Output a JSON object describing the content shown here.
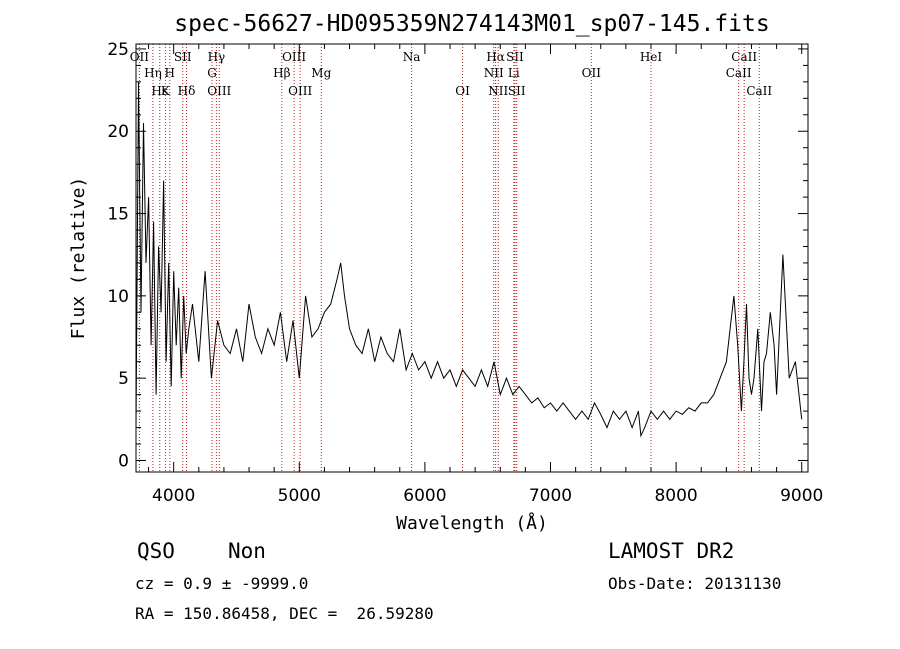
{
  "chart_data": {
    "type": "line",
    "title": "spec-56627-HD095359N274143M01_sp07-145.fits",
    "xlabel": "Wavelength (Å)",
    "ylabel": "Flux (relative)",
    "xlim": [
      3700,
      9050
    ],
    "ylim": [
      -0.7,
      25.3
    ],
    "xticks": [
      4000,
      5000,
      6000,
      7000,
      8000,
      9000
    ],
    "yticks": [
      0,
      5,
      10,
      15,
      20,
      25
    ],
    "grid": false,
    "series": [
      {
        "x": [
          3700,
          3720,
          3740,
          3760,
          3780,
          3800,
          3820,
          3840,
          3860,
          3880,
          3900,
          3920,
          3940,
          3960,
          3980,
          4000,
          4020,
          4040,
          4060,
          4080,
          4100,
          4120,
          4150,
          4200,
          4250,
          4300,
          4350,
          4400,
          4450,
          4500,
          4550,
          4600,
          4650,
          4700,
          4750,
          4800,
          4850,
          4900,
          4950,
          5000,
          5050,
          5100,
          5150,
          5200,
          5250,
          5300,
          5330,
          5360,
          5400,
          5450,
          5500,
          5550,
          5600,
          5650,
          5700,
          5750,
          5800,
          5850,
          5900,
          5950,
          6000,
          6050,
          6100,
          6150,
          6200,
          6250,
          6300,
          6350,
          6400,
          6450,
          6500,
          6550,
          6600,
          6650,
          6700,
          6750,
          6800,
          6850,
          6900,
          6950,
          7000,
          7050,
          7100,
          7150,
          7200,
          7250,
          7300,
          7350,
          7400,
          7450,
          7500,
          7550,
          7600,
          7650,
          7700,
          7720,
          7750,
          7800,
          7850,
          7900,
          7950,
          8000,
          8050,
          8100,
          8150,
          8200,
          8250,
          8300,
          8350,
          8400,
          8430,
          8460,
          8490,
          8520,
          8540,
          8560,
          8580,
          8600,
          8620,
          8650,
          8680,
          8700,
          8720,
          8750,
          8780,
          8800,
          8850,
          8900,
          8950,
          9000
        ],
        "y": [
          2.0,
          23.0,
          9.0,
          20.5,
          12.0,
          16.0,
          7.0,
          14.5,
          4.0,
          13.0,
          9.0,
          17.0,
          6.0,
          12.0,
          4.5,
          11.5,
          7.0,
          10.5,
          5.0,
          10.0,
          6.5,
          8.0,
          9.5,
          6.0,
          11.5,
          5.0,
          8.5,
          7.0,
          6.5,
          8.0,
          6.0,
          9.5,
          7.5,
          6.5,
          8.0,
          7.0,
          9.0,
          6.0,
          8.5,
          5.0,
          10.0,
          7.5,
          8.0,
          9.0,
          9.5,
          11.0,
          12.0,
          10.0,
          8.0,
          7.0,
          6.5,
          8.0,
          6.0,
          7.5,
          6.5,
          6.0,
          8.0,
          5.5,
          6.5,
          5.5,
          6.0,
          5.0,
          6.0,
          5.0,
          5.5,
          4.5,
          5.5,
          5.0,
          4.5,
          5.5,
          4.5,
          6.0,
          4.0,
          5.0,
          4.0,
          4.5,
          4.0,
          3.5,
          3.8,
          3.2,
          3.5,
          3.0,
          3.5,
          3.0,
          2.5,
          3.0,
          2.5,
          3.5,
          2.8,
          2.0,
          3.0,
          2.5,
          3.0,
          2.0,
          3.0,
          1.5,
          2.0,
          3.0,
          2.5,
          3.0,
          2.5,
          3.0,
          2.8,
          3.2,
          3.0,
          3.5,
          3.5,
          4.0,
          5.0,
          6.0,
          8.0,
          10.0,
          7.0,
          3.0,
          6.0,
          9.5,
          5.0,
          4.0,
          5.0,
          8.0,
          3.0,
          6.0,
          6.5,
          9.0,
          7.0,
          4.0,
          12.5,
          5.0,
          6.0,
          2.5
        ]
      }
    ],
    "lines": [
      {
        "label": "OII",
        "x": 3727,
        "row": 0
      },
      {
        "label": "Hη",
        "x": 3835,
        "row": 1
      },
      {
        "label": "Hε",
        "x": 3889,
        "row": 2
      },
      {
        "label": "K",
        "x": 3934,
        "row": 2
      },
      {
        "label": "H",
        "x": 3969,
        "row": 1
      },
      {
        "label": "SII",
        "x": 4072,
        "row": 0
      },
      {
        "label": "Hδ",
        "x": 4102,
        "row": 2
      },
      {
        "label": "Hγ",
        "x": 4340,
        "row": 0
      },
      {
        "label": "G",
        "x": 4305,
        "row": 1
      },
      {
        "label": "OIII",
        "x": 4363,
        "row": 2
      },
      {
        "label": "Hβ",
        "x": 4861,
        "row": 1
      },
      {
        "label": "OIII",
        "x": 4959,
        "row": 0
      },
      {
        "label": "OIII",
        "x": 5007,
        "row": 2
      },
      {
        "label": "Mg",
        "x": 5175,
        "row": 1
      },
      {
        "label": "Na",
        "x": 5894,
        "row": 0
      },
      {
        "label": "OI",
        "x": 6300,
        "row": 2
      },
      {
        "label": "Hα",
        "x": 6563,
        "row": 0
      },
      {
        "label": "NII",
        "x": 6548,
        "row": 1
      },
      {
        "label": "NII",
        "x": 6584,
        "row": 2
      },
      {
        "label": "SII",
        "x": 6717,
        "row": 0
      },
      {
        "label": "Li",
        "x": 6708,
        "row": 1
      },
      {
        "label": "SII",
        "x": 6731,
        "row": 2
      },
      {
        "label": "OII",
        "x": 7325,
        "row": 1
      },
      {
        "label": "HeI",
        "x": 7800,
        "row": 0
      },
      {
        "label": "CaII",
        "x": 8542,
        "row": 0
      },
      {
        "label": "CaII",
        "x": 8498,
        "row": 1
      },
      {
        "label": "CaII",
        "x": 8662,
        "row": 2
      }
    ],
    "line_color": "#b22222"
  },
  "info": {
    "class": "QSO",
    "subclass": "Non",
    "survey": "LAMOST DR2",
    "cz": "cz = 0.9 ± -9999.0",
    "obs_date": "Obs-Date: 20131130",
    "coords": "RA = 150.86458, DEC =  26.59280"
  }
}
